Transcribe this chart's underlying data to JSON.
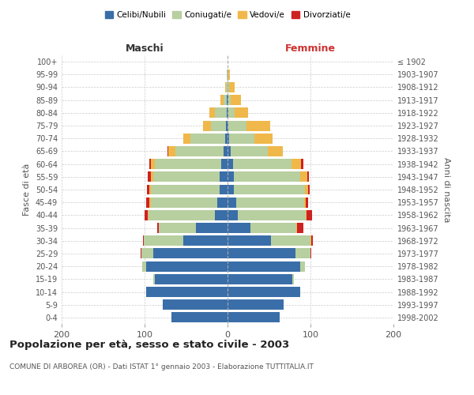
{
  "age_groups": [
    "0-4",
    "5-9",
    "10-14",
    "15-19",
    "20-24",
    "25-29",
    "30-34",
    "35-39",
    "40-44",
    "45-49",
    "50-54",
    "55-59",
    "60-64",
    "65-69",
    "70-74",
    "75-79",
    "80-84",
    "85-89",
    "90-94",
    "95-99",
    "100+"
  ],
  "birth_years": [
    "1998-2002",
    "1993-1997",
    "1988-1992",
    "1983-1987",
    "1978-1982",
    "1973-1977",
    "1968-1972",
    "1963-1967",
    "1958-1962",
    "1953-1957",
    "1948-1952",
    "1943-1947",
    "1938-1942",
    "1933-1937",
    "1928-1932",
    "1923-1927",
    "1918-1922",
    "1913-1917",
    "1908-1912",
    "1903-1907",
    "≤ 1902"
  ],
  "male_celibi": [
    68,
    78,
    98,
    88,
    98,
    90,
    53,
    38,
    15,
    12,
    10,
    10,
    8,
    5,
    3,
    2,
    1,
    1,
    0,
    0,
    0
  ],
  "male_coniugati": [
    0,
    0,
    0,
    2,
    5,
    14,
    48,
    45,
    80,
    80,
    82,
    80,
    80,
    58,
    42,
    18,
    14,
    4,
    2,
    1,
    0
  ],
  "male_vedovi": [
    0,
    0,
    0,
    0,
    0,
    0,
    0,
    0,
    1,
    2,
    2,
    2,
    4,
    8,
    8,
    10,
    7,
    4,
    1,
    0,
    0
  ],
  "male_divorziati": [
    0,
    0,
    0,
    0,
    0,
    1,
    1,
    2,
    4,
    4,
    3,
    4,
    2,
    1,
    0,
    0,
    0,
    0,
    0,
    0,
    0
  ],
  "female_nubili": [
    63,
    68,
    88,
    78,
    88,
    82,
    52,
    28,
    12,
    10,
    8,
    8,
    7,
    4,
    2,
    1,
    1,
    1,
    0,
    0,
    0
  ],
  "female_coniugate": [
    0,
    0,
    0,
    2,
    5,
    18,
    48,
    55,
    82,
    82,
    85,
    80,
    70,
    45,
    30,
    22,
    8,
    3,
    2,
    1,
    0
  ],
  "female_vedove": [
    0,
    0,
    0,
    0,
    0,
    0,
    1,
    1,
    1,
    2,
    4,
    8,
    12,
    18,
    22,
    28,
    16,
    12,
    7,
    2,
    0
  ],
  "female_divorziate": [
    0,
    0,
    0,
    0,
    0,
    1,
    2,
    7,
    7,
    3,
    2,
    2,
    2,
    0,
    0,
    0,
    0,
    0,
    0,
    0,
    0
  ],
  "color_celibi": "#3a6ea8",
  "color_coniugati": "#b8cfa0",
  "color_vedovi": "#f0b84a",
  "color_divorziati": "#cc2222",
  "title": "Popolazione per età, sesso e stato civile - 2003",
  "subtitle": "COMUNE DI ARBOREA (OR) - Dati ISTAT 1° gennaio 2003 - Elaborazione TUTTITALIA.IT",
  "xlabel_left": "Maschi",
  "xlabel_right": "Femmine",
  "ylabel_left": "Fasce di età",
  "ylabel_right": "Anni di nascita",
  "xlim": 200,
  "background_color": "#ffffff",
  "grid_color": "#cccccc"
}
